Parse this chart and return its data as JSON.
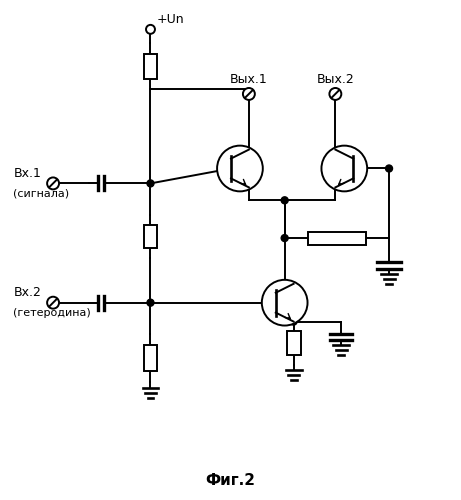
{
  "title": "Фиг.2",
  "label_vx1": "Вх.1",
  "label_signal": "(сигнала)",
  "label_vx2": "Вх.2",
  "label_hetero": "(гетеродина)",
  "label_vych1": "Вых.1",
  "label_vych2": "Вых.2",
  "label_power": "+Un",
  "line_color": "#000000",
  "bg_color": "#ffffff"
}
